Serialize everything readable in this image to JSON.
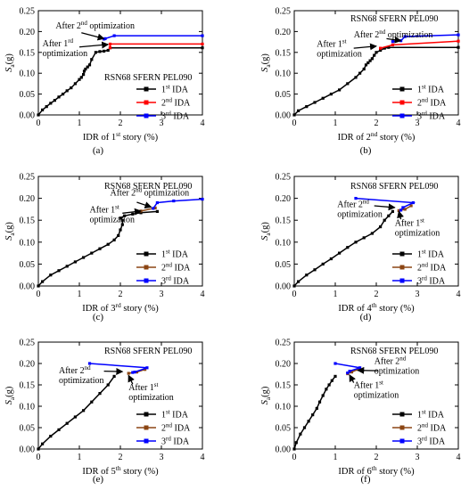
{
  "colors": {
    "ida1": "#000000",
    "ida2": "#ff0000",
    "ida3": "#0000ff",
    "ida2_alt": "#8b4513"
  },
  "chart_data": [
    {
      "id": "a",
      "type": "line",
      "panel_label": "(a)",
      "title": "RSN68 SFERN PEL090",
      "xlabel": {
        "pre": "IDR of 1",
        "sup": "st",
        "post": " story (%)"
      },
      "ylabel": {
        "main": "S",
        "sub": "a",
        "post": "(g)"
      },
      "xlim": [
        0,
        4
      ],
      "ylim": [
        0,
        0.25
      ],
      "xticks": [
        0,
        1,
        2,
        3,
        4
      ],
      "yticks": [
        0.0,
        0.05,
        0.1,
        0.15,
        0.2,
        0.25
      ],
      "legend": {
        "position": "lower-right",
        "entries": [
          {
            "pre": "1",
            "sup": "st",
            "post": " IDA",
            "color": "ida1"
          },
          {
            "pre": "2",
            "sup": "nd",
            "post": " IDA",
            "color": "ida2"
          },
          {
            "pre": "3",
            "sup": "rd",
            "post": " IDA",
            "color": "ida3"
          }
        ]
      },
      "series": [
        {
          "color": "ida1",
          "x": [
            0,
            0.1,
            0.2,
            0.3,
            0.4,
            0.5,
            0.6,
            0.7,
            0.8,
            0.9,
            1.0,
            1.05,
            1.1,
            1.12,
            1.15,
            1.2,
            1.25,
            1.3,
            1.4,
            1.5,
            1.6,
            1.7,
            1.75,
            4.0
          ],
          "y": [
            0,
            0.012,
            0.02,
            0.028,
            0.035,
            0.043,
            0.05,
            0.058,
            0.065,
            0.075,
            0.085,
            0.09,
            0.097,
            0.105,
            0.11,
            0.115,
            0.12,
            0.133,
            0.15,
            0.152,
            0.153,
            0.155,
            0.161,
            0.161
          ]
        },
        {
          "color": "ida2",
          "x": [
            1.75,
            1.75,
            4.0
          ],
          "y": [
            0.161,
            0.17,
            0.17
          ]
        },
        {
          "color": "ida3",
          "x": [
            1.6,
            1.63,
            1.85,
            4.0
          ],
          "y": [
            0.182,
            0.183,
            0.19,
            0.19
          ]
        }
      ],
      "annotations": [
        {
          "lines": [
            {
              "pre": "After 2",
              "sup": "nd",
              "post": " optimization"
            }
          ],
          "text_at": [
            0.42,
            0.207
          ],
          "arrow_from": [
            1.05,
            0.197
          ],
          "arrow_to": [
            1.6,
            0.183
          ]
        },
        {
          "lines": [
            {
              "pre": "After 1",
              "sup": "rd",
              "post": ""
            },
            {
              "pre": "optimization",
              "sup": "",
              "post": ""
            }
          ],
          "text_at": [
            0.1,
            0.165
          ],
          "arrow_from": [
            1.0,
            0.163
          ],
          "arrow_to": [
            1.7,
            0.169
          ]
        }
      ]
    },
    {
      "id": "b",
      "type": "line",
      "panel_label": "(b)",
      "title": "RSN68 SFERN PEL090",
      "xlabel": {
        "pre": "IDR of 2",
        "sup": "nd",
        "post": " story (%)"
      },
      "ylabel": {
        "main": "S",
        "sub": "a",
        "post": "(g)"
      },
      "xlim": [
        0,
        4
      ],
      "ylim": [
        0,
        0.25
      ],
      "xticks": [
        0,
        1,
        2,
        3,
        4
      ],
      "yticks": [
        0.0,
        0.05,
        0.1,
        0.15,
        0.2,
        0.25
      ],
      "legend": {
        "position": "lower-right",
        "entries": [
          {
            "pre": "1",
            "sup": "st",
            "post": " IDA",
            "color": "ida1"
          },
          {
            "pre": "2",
            "sup": "nd",
            "post": " IDA",
            "color": "ida2"
          },
          {
            "pre": "3",
            "sup": "rd",
            "post": " IDA",
            "color": "ida3"
          }
        ]
      },
      "series": [
        {
          "color": "ida1",
          "x": [
            0,
            0.1,
            0.3,
            0.5,
            0.7,
            0.9,
            1.1,
            1.3,
            1.5,
            1.6,
            1.7,
            1.75,
            1.8,
            1.85,
            1.9,
            1.95,
            2.0,
            2.1,
            2.2,
            2.3,
            4.0
          ],
          "y": [
            0,
            0.01,
            0.02,
            0.03,
            0.04,
            0.05,
            0.06,
            0.075,
            0.09,
            0.1,
            0.11,
            0.12,
            0.125,
            0.13,
            0.135,
            0.143,
            0.15,
            0.155,
            0.16,
            0.162,
            0.162
          ]
        },
        {
          "color": "ida2",
          "x": [
            2.1,
            2.4,
            4.0
          ],
          "y": [
            0.16,
            0.168,
            0.177
          ]
        },
        {
          "color": "ida3",
          "x": [
            2.4,
            2.6,
            2.7,
            4.0
          ],
          "y": [
            0.176,
            0.178,
            0.188,
            0.192
          ]
        }
      ],
      "annotations": [
        {
          "lines": [
            {
              "pre": "After 2",
              "sup": "nd",
              "post": " optimization"
            }
          ],
          "text_at": [
            1.45,
            0.186
          ],
          "arrow_from": [
            2.25,
            0.183
          ],
          "arrow_to": [
            2.6,
            0.178
          ]
        },
        {
          "lines": [
            {
              "pre": "After 1",
              "sup": "st",
              "post": ""
            },
            {
              "pre": "optimization",
              "sup": "",
              "post": ""
            }
          ],
          "text_at": [
            0.55,
            0.163
          ],
          "arrow_from": [
            1.45,
            0.16
          ],
          "arrow_to": [
            2.0,
            0.165
          ]
        }
      ]
    },
    {
      "id": "c",
      "type": "line",
      "panel_label": "(c)",
      "title": "RSN68 SFERN PEL090",
      "xlabel": {
        "pre": "IDR of 3",
        "sup": "rd",
        "post": " story (%)"
      },
      "ylabel": {
        "main": "S",
        "sub": "a",
        "post": "(g)"
      },
      "xlim": [
        0,
        4
      ],
      "ylim": [
        0,
        0.25
      ],
      "xticks": [
        0,
        1,
        2,
        3,
        4
      ],
      "yticks": [
        0.0,
        0.05,
        0.1,
        0.15,
        0.2,
        0.25
      ],
      "legend": {
        "position": "lower-right",
        "entries": [
          {
            "pre": "1",
            "sup": "st",
            "post": " IDA",
            "color": "ida1"
          },
          {
            "pre": "2",
            "sup": "nd",
            "post": " IDA",
            "color": "ida2_alt"
          },
          {
            "pre": "3",
            "sup": "rd",
            "post": " IDA",
            "color": "ida3"
          }
        ]
      },
      "series": [
        {
          "color": "ida1",
          "x": [
            0,
            0.1,
            0.3,
            0.5,
            0.7,
            0.9,
            1.1,
            1.3,
            1.5,
            1.7,
            1.85,
            1.95,
            2.0,
            2.05,
            2.05,
            2.0,
            2.1,
            2.3,
            2.5,
            2.9
          ],
          "y": [
            0,
            0.01,
            0.025,
            0.035,
            0.045,
            0.055,
            0.065,
            0.075,
            0.085,
            0.095,
            0.105,
            0.115,
            0.128,
            0.14,
            0.15,
            0.155,
            0.16,
            0.164,
            0.167,
            0.17
          ]
        },
        {
          "color": "ida2_alt",
          "x": [
            2.5,
            2.85
          ],
          "y": [
            0.171,
            0.178
          ]
        },
        {
          "color": "ida3",
          "x": [
            2.8,
            2.9,
            3.3,
            4.0
          ],
          "y": [
            0.177,
            0.19,
            0.194,
            0.198
          ]
        }
      ],
      "annotations": [
        {
          "lines": [
            {
              "pre": "After 2",
              "sup": "nd",
              "post": " optimization"
            }
          ],
          "text_at": [
            1.75,
            0.206
          ],
          "arrow_from": [
            2.4,
            0.191
          ],
          "arrow_to": [
            2.75,
            0.18
          ]
        },
        {
          "lines": [
            {
              "pre": "After 1",
              "sup": "st",
              "post": ""
            },
            {
              "pre": "optimization",
              "sup": "",
              "post": ""
            }
          ],
          "text_at": [
            1.25,
            0.168
          ],
          "arrow_from": [
            2.05,
            0.166
          ],
          "arrow_to": [
            2.5,
            0.171
          ]
        }
      ]
    },
    {
      "id": "d",
      "type": "line",
      "panel_label": "(d)",
      "title": "RSN68 SFERN PEL090",
      "xlabel": {
        "pre": "IDR of 4",
        "sup": "th",
        "post": " story (%)"
      },
      "ylabel": {
        "main": "S",
        "sub": "a",
        "post": "(g)"
      },
      "xlim": [
        0,
        4
      ],
      "ylim": [
        0,
        0.25
      ],
      "xticks": [
        0,
        1,
        2,
        3,
        4
      ],
      "yticks": [
        0.0,
        0.05,
        0.1,
        0.15,
        0.2,
        0.25
      ],
      "legend": {
        "position": "lower-right",
        "entries": [
          {
            "pre": "1",
            "sup": "st",
            "post": " IDA",
            "color": "ida1"
          },
          {
            "pre": "2",
            "sup": "nd",
            "post": " IDA",
            "color": "ida2_alt"
          },
          {
            "pre": "3",
            "sup": "rd",
            "post": " IDA",
            "color": "ida3"
          }
        ]
      },
      "series": [
        {
          "color": "ida1",
          "x": [
            0,
            0.1,
            0.3,
            0.5,
            0.7,
            0.9,
            1.1,
            1.3,
            1.5,
            1.7,
            1.9,
            2.1,
            2.2,
            2.3,
            2.4
          ],
          "y": [
            0,
            0.01,
            0.025,
            0.037,
            0.05,
            0.062,
            0.075,
            0.088,
            0.1,
            0.11,
            0.12,
            0.135,
            0.15,
            0.16,
            0.17
          ]
        },
        {
          "color": "ida2_alt",
          "x": [
            2.55,
            2.7,
            2.85
          ],
          "y": [
            0.172,
            0.175,
            0.183
          ]
        },
        {
          "color": "ida3",
          "x": [
            1.5,
            2.9,
            2.65,
            2.6
          ],
          "y": [
            0.2,
            0.19,
            0.179,
            0.173
          ]
        }
      ],
      "annotations": [
        {
          "lines": [
            {
              "pre": "After 2",
              "sup": "nd",
              "post": ""
            },
            {
              "pre": "optimization",
              "sup": "",
              "post": ""
            }
          ],
          "text_at": [
            1.05,
            0.18
          ],
          "arrow_from": [
            1.95,
            0.183
          ],
          "arrow_to": [
            2.45,
            0.179
          ]
        },
        {
          "lines": [
            {
              "pre": "After 1",
              "sup": "st",
              "post": ""
            },
            {
              "pre": "optimization",
              "sup": "",
              "post": ""
            }
          ],
          "text_at": [
            2.45,
            0.137
          ],
          "arrow_from": [
            2.6,
            0.152
          ],
          "arrow_to": [
            2.55,
            0.17
          ]
        }
      ]
    },
    {
      "id": "e",
      "type": "line",
      "panel_label": "(e)",
      "title": "RSN68 SFERN PEL090",
      "xlabel": {
        "pre": "IDR of 5",
        "sup": "th",
        "post": " story (%)"
      },
      "ylabel": {
        "main": "S",
        "sub": "a",
        "post": "(g)"
      },
      "xlim": [
        0,
        4
      ],
      "ylim": [
        0,
        0.25
      ],
      "xticks": [
        0,
        1,
        2,
        3,
        4
      ],
      "yticks": [
        0.0,
        0.05,
        0.1,
        0.15,
        0.2,
        0.25
      ],
      "legend": {
        "position": "lower-right",
        "entries": [
          {
            "pre": "1",
            "sup": "st",
            "post": " IDA",
            "color": "ida1"
          },
          {
            "pre": "2",
            "sup": "nd",
            "post": " IDA",
            "color": "ida2_alt"
          },
          {
            "pre": "3",
            "sup": "rd",
            "post": " IDA",
            "color": "ida3"
          }
        ]
      },
      "series": [
        {
          "color": "ida1",
          "x": [
            0,
            0.1,
            0.3,
            0.5,
            0.7,
            0.9,
            1.1,
            1.3,
            1.5,
            1.7,
            1.85
          ],
          "y": [
            0,
            0.012,
            0.03,
            0.045,
            0.06,
            0.075,
            0.09,
            0.11,
            0.13,
            0.15,
            0.17
          ]
        },
        {
          "color": "ida2_alt",
          "x": [
            2.2,
            2.4,
            2.6
          ],
          "y": [
            0.177,
            0.18,
            0.186
          ]
        },
        {
          "color": "ida3",
          "x": [
            1.25,
            2.65,
            2.35,
            2.3
          ],
          "y": [
            0.2,
            0.19,
            0.18,
            0.179
          ]
        }
      ],
      "annotations": [
        {
          "lines": [
            {
              "pre": "After 2",
              "sup": "nd",
              "post": ""
            },
            {
              "pre": "optimization",
              "sup": "",
              "post": ""
            }
          ],
          "text_at": [
            0.5,
            0.177
          ],
          "arrow_from": [
            1.6,
            0.182
          ],
          "arrow_to": [
            2.05,
            0.181
          ]
        },
        {
          "lines": [
            {
              "pre": "After 1",
              "sup": "st",
              "post": ""
            },
            {
              "pre": "optimization",
              "sup": "",
              "post": ""
            }
          ],
          "text_at": [
            2.2,
            0.137
          ],
          "arrow_from": [
            2.3,
            0.152
          ],
          "arrow_to": [
            2.2,
            0.172
          ]
        }
      ]
    },
    {
      "id": "f",
      "type": "line",
      "panel_label": "(f)",
      "title": "RSN68 SFERN PEL090",
      "xlabel": {
        "pre": "IDR of 6",
        "sup": "th",
        "post": " story (%)"
      },
      "ylabel": {
        "main": "S",
        "sub": "a",
        "post": "(g)"
      },
      "xlim": [
        0,
        4
      ],
      "ylim": [
        0,
        0.25
      ],
      "xticks": [
        0,
        1,
        2,
        3,
        4
      ],
      "yticks": [
        0.0,
        0.05,
        0.1,
        0.15,
        0.2,
        0.25
      ],
      "legend": {
        "position": "lower-right",
        "entries": [
          {
            "pre": "1",
            "sup": "st",
            "post": " IDA",
            "color": "ida1"
          },
          {
            "pre": "2",
            "sup": "nd",
            "post": " IDA",
            "color": "ida2_alt"
          },
          {
            "pre": "3",
            "sup": "rd",
            "post": " IDA",
            "color": "ida3"
          }
        ]
      },
      "series": [
        {
          "color": "ida1",
          "x": [
            0,
            0.05,
            0.15,
            0.25,
            0.35,
            0.45,
            0.55,
            0.62,
            0.7,
            0.78,
            0.85,
            0.92,
            1.0
          ],
          "y": [
            0,
            0.015,
            0.035,
            0.05,
            0.065,
            0.08,
            0.095,
            0.11,
            0.125,
            0.14,
            0.15,
            0.16,
            0.17
          ]
        },
        {
          "color": "ida2_alt",
          "x": [
            1.3,
            1.4,
            1.55
          ],
          "y": [
            0.176,
            0.18,
            0.186
          ]
        },
        {
          "color": "ida3",
          "x": [
            1.0,
            1.6,
            1.35,
            1.3
          ],
          "y": [
            0.2,
            0.19,
            0.182,
            0.178
          ]
        }
      ],
      "annotations": [
        {
          "lines": [
            {
              "pre": "After 2",
              "sup": "nd",
              "post": ""
            },
            {
              "pre": "optimization",
              "sup": "",
              "post": ""
            }
          ],
          "text_at": [
            1.95,
            0.199
          ],
          "arrow_from": [
            2.05,
            0.183
          ],
          "arrow_to": [
            1.55,
            0.184
          ]
        },
        {
          "lines": [
            {
              "pre": "After 1",
              "sup": "st",
              "post": ""
            },
            {
              "pre": "optimization",
              "sup": "",
              "post": ""
            }
          ],
          "text_at": [
            1.45,
            0.143
          ],
          "arrow_from": [
            1.45,
            0.155
          ],
          "arrow_to": [
            1.35,
            0.173
          ]
        }
      ]
    }
  ]
}
